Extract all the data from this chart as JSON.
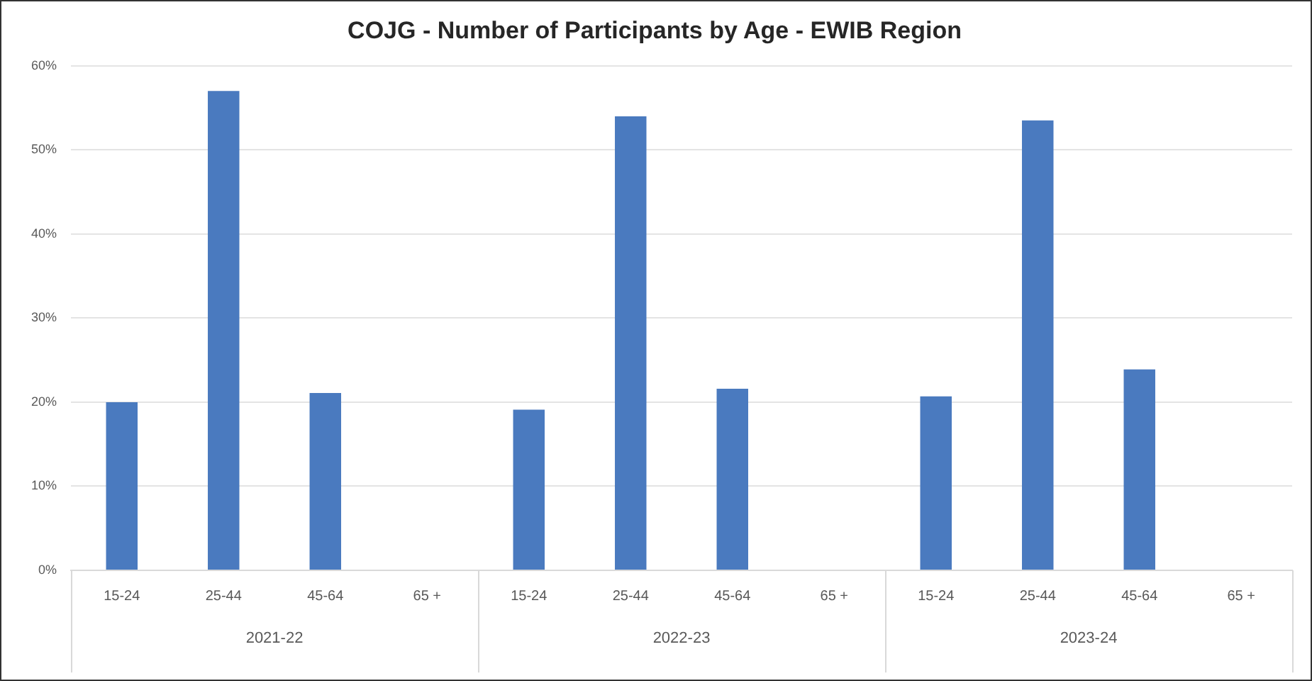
{
  "chart_data": {
    "type": "bar",
    "title": "COJG - Number of Participants by Age - EWIB Region",
    "categories": [
      "15-24",
      "25-44",
      "45-64",
      "65 +",
      "15-24",
      "25-44",
      "45-64",
      "65 +",
      "15-24",
      "25-44",
      "45-64",
      "65 +"
    ],
    "values": [
      20.0,
      57.0,
      21.1,
      0,
      19.1,
      54.0,
      21.6,
      0,
      20.7,
      53.5,
      23.9,
      0
    ],
    "color": "#4a7abf",
    "annotations": [
      "2021-22",
      "2022-23",
      "2023-24"
    ],
    "ylim": [
      0,
      60
    ],
    "yticks": [
      {
        "value": 0,
        "label": "0%"
      },
      {
        "value": 10,
        "label": "10%"
      },
      {
        "value": 20,
        "label": "20%"
      },
      {
        "value": 30,
        "label": "30%"
      },
      {
        "value": 40,
        "label": "40%"
      },
      {
        "value": 50,
        "label": "50%"
      },
      {
        "value": 60,
        "label": "60%"
      }
    ],
    "grid": "y",
    "legend": false
  }
}
